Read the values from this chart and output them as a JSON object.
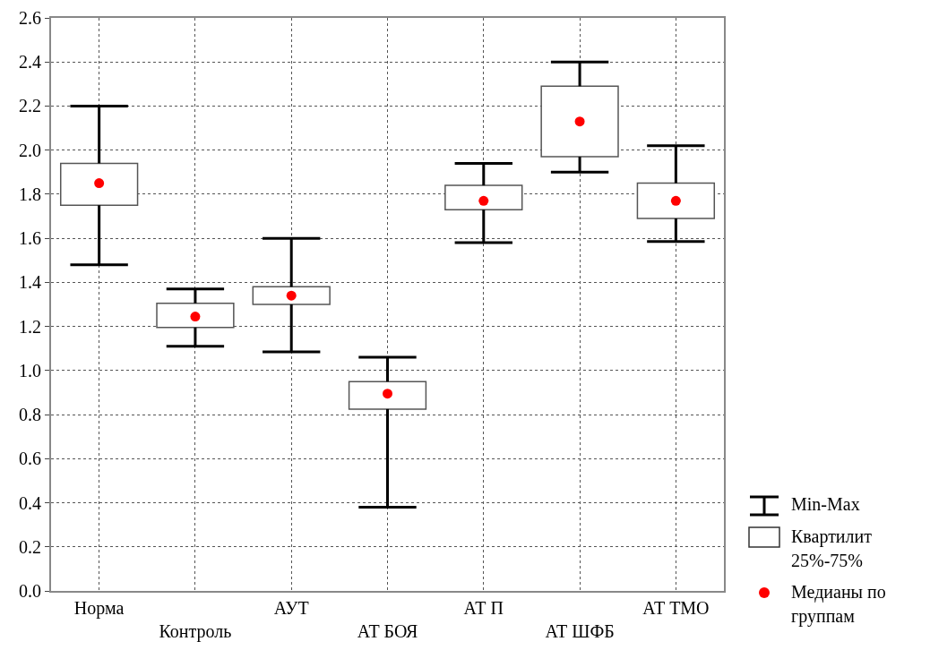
{
  "chart_data": {
    "type": "box",
    "categories": [
      "Норма",
      "Контроль",
      "АУТ",
      "АТ БОЯ",
      "АТ П",
      "АТ ШФБ",
      "АТ ТМО"
    ],
    "boxes": [
      {
        "low": 1.48,
        "q1": 1.75,
        "median": 1.85,
        "q3": 1.94,
        "high": 2.2
      },
      {
        "low": 1.11,
        "q1": 1.195,
        "median": 1.245,
        "q3": 1.305,
        "high": 1.37
      },
      {
        "low": 1.085,
        "q1": 1.3,
        "median": 1.34,
        "q3": 1.38,
        "high": 1.6
      },
      {
        "low": 0.38,
        "q1": 0.825,
        "median": 0.895,
        "q3": 0.95,
        "high": 1.06
      },
      {
        "low": 1.58,
        "q1": 1.73,
        "median": 1.77,
        "q3": 1.84,
        "high": 1.94
      },
      {
        "low": 1.9,
        "q1": 1.97,
        "median": 2.13,
        "q3": 2.29,
        "high": 2.4
      },
      {
        "low": 1.585,
        "q1": 1.69,
        "median": 1.77,
        "q3": 1.85,
        "high": 2.02
      }
    ],
    "annotations": [
      "Min-Max",
      "Квартилит 25%-75%",
      "Медианы по группам"
    ],
    "ylim": [
      0,
      2.6
    ],
    "yticks": [
      {
        "value": 0,
        "label": "0.0"
      },
      0.2,
      0.4,
      0.6,
      0.8,
      {
        "value": 1,
        "label": "1.0"
      },
      1.2,
      1.4,
      1.6,
      1.8,
      {
        "value": 2,
        "label": "2.0"
      },
      2.2,
      2.4,
      2.6
    ],
    "grid": true
  }
}
